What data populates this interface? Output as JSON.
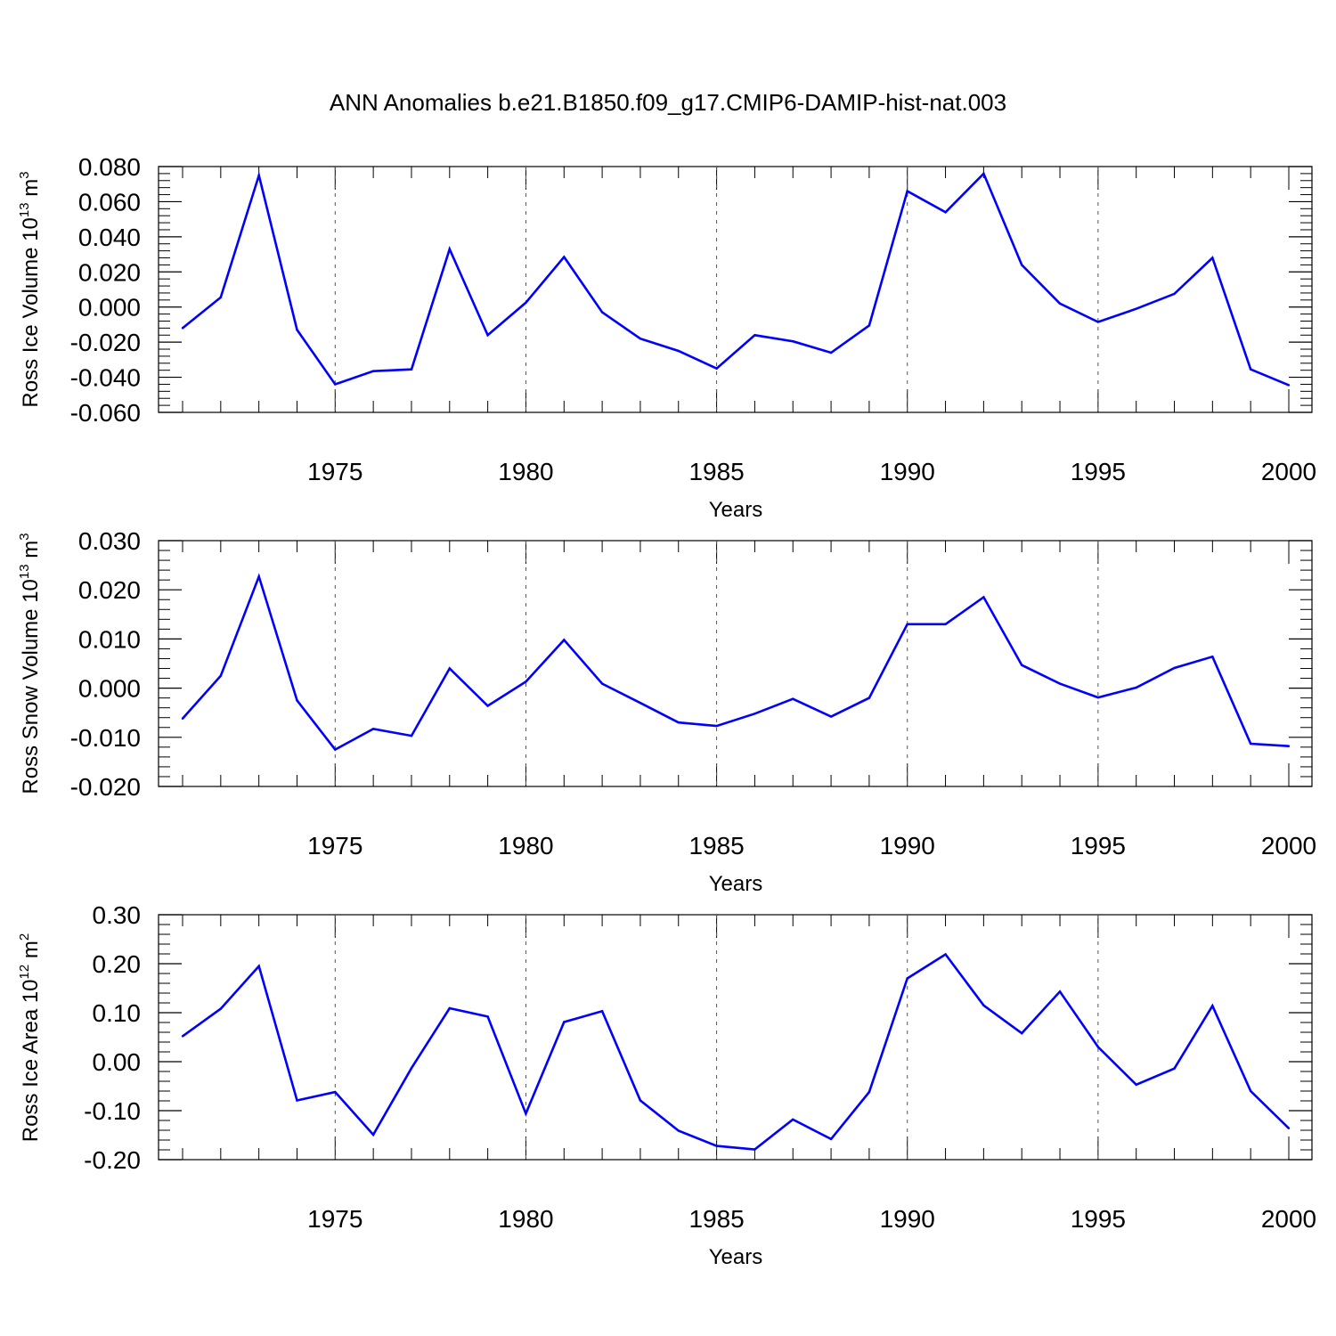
{
  "title": "ANN Anomalies b.e21.B1850.f09_g17.CMIP6-DAMIP-hist-nat.003",
  "line_color": "#0000ff",
  "chart_data": [
    {
      "type": "line",
      "ylabel": "Ross Ice Volume 10",
      "ylabel_exp": "13",
      "ylabel_unit": " m",
      "ylabel_unit_exp": "3",
      "xlabel": "Years",
      "xlim": [
        1971,
        2000
      ],
      "ylim": [
        -0.06,
        0.08
      ],
      "yticks": [
        -0.06,
        -0.04,
        -0.02,
        0.0,
        0.02,
        0.04,
        0.06,
        0.08
      ],
      "ytick_labels": [
        "-0.060",
        "-0.040",
        "-0.020",
        "0.000",
        "0.020",
        "0.040",
        "0.060",
        "0.080"
      ],
      "xticks": [
        1975,
        1980,
        1985,
        1990,
        1995,
        2000
      ],
      "xtick_labels": [
        "1975",
        "1980",
        "1985",
        "1990",
        "1995",
        "2000"
      ],
      "x": [
        1971,
        1972,
        1973,
        1974,
        1975,
        1976,
        1977,
        1978,
        1979,
        1980,
        1981,
        1982,
        1983,
        1984,
        1985,
        1986,
        1987,
        1988,
        1989,
        1990,
        1991,
        1992,
        1993,
        1994,
        1995,
        1996,
        1997,
        1998,
        1999,
        2000
      ],
      "values": [
        -0.012,
        0.0055,
        0.075,
        -0.013,
        -0.044,
        -0.0365,
        -0.0355,
        0.033,
        -0.016,
        0.0025,
        0.0285,
        -0.003,
        -0.018,
        -0.025,
        -0.035,
        -0.016,
        -0.0195,
        -0.026,
        -0.0105,
        0.066,
        0.054,
        0.076,
        0.024,
        0.002,
        -0.0085,
        -0.001,
        0.0075,
        0.028,
        -0.0355,
        -0.0445
      ]
    },
    {
      "type": "line",
      "ylabel": "Ross Snow Volume 10",
      "ylabel_exp": "13",
      "ylabel_unit": " m",
      "ylabel_unit_exp": "3",
      "xlabel": "Years",
      "xlim": [
        1971,
        2000
      ],
      "ylim": [
        -0.02,
        0.03
      ],
      "yticks": [
        -0.02,
        -0.01,
        0.0,
        0.01,
        0.02,
        0.03
      ],
      "ytick_labels": [
        "-0.020",
        "-0.010",
        "0.000",
        "0.010",
        "0.020",
        "0.030"
      ],
      "xticks": [
        1975,
        1980,
        1985,
        1990,
        1995,
        2000
      ],
      "xtick_labels": [
        "1975",
        "1980",
        "1985",
        "1990",
        "1995",
        "2000"
      ],
      "x": [
        1971,
        1972,
        1973,
        1974,
        1975,
        1976,
        1977,
        1978,
        1979,
        1980,
        1981,
        1982,
        1983,
        1984,
        1985,
        1986,
        1987,
        1988,
        1989,
        1990,
        1991,
        1992,
        1993,
        1994,
        1995,
        1996,
        1997,
        1998,
        1999,
        2000
      ],
      "values": [
        -0.0062,
        0.0025,
        0.0227,
        -0.0025,
        -0.0125,
        -0.0083,
        -0.0097,
        0.004,
        -0.0036,
        0.0013,
        0.0098,
        0.0009,
        -0.003,
        -0.007,
        -0.0077,
        -0.0052,
        -0.0022,
        -0.0058,
        -0.002,
        0.013,
        0.013,
        0.0185,
        0.0047,
        0.0009,
        -0.0019,
        0.0001,
        0.0041,
        0.0064,
        -0.0113,
        -0.0118
      ]
    },
    {
      "type": "line",
      "ylabel": "Ross Ice Area 10",
      "ylabel_exp": "12",
      "ylabel_unit": " m",
      "ylabel_unit_exp": "2",
      "xlabel": "Years",
      "xlim": [
        1971,
        2000
      ],
      "ylim": [
        -0.2,
        0.3
      ],
      "yticks": [
        -0.2,
        -0.1,
        0.0,
        0.1,
        0.2,
        0.3
      ],
      "ytick_labels": [
        "-0.20",
        "-0.10",
        "0.00",
        "0.10",
        "0.20",
        "0.30"
      ],
      "xticks": [
        1975,
        1980,
        1985,
        1990,
        1995,
        2000
      ],
      "xtick_labels": [
        "1975",
        "1980",
        "1985",
        "1990",
        "1995",
        "2000"
      ],
      "x": [
        1971,
        1972,
        1973,
        1974,
        1975,
        1976,
        1977,
        1978,
        1979,
        1980,
        1981,
        1982,
        1983,
        1984,
        1985,
        1986,
        1987,
        1988,
        1989,
        1990,
        1991,
        1992,
        1993,
        1994,
        1995,
        1996,
        1997,
        1998,
        1999,
        2000
      ],
      "values": [
        0.052,
        0.108,
        0.195,
        -0.079,
        -0.062,
        -0.149,
        -0.013,
        0.109,
        0.092,
        -0.106,
        0.081,
        0.103,
        -0.079,
        -0.141,
        -0.172,
        -0.179,
        -0.118,
        -0.158,
        -0.062,
        0.17,
        0.219,
        0.115,
        0.058,
        0.143,
        0.03,
        -0.047,
        -0.014,
        0.114,
        -0.06,
        -0.136
      ]
    }
  ]
}
